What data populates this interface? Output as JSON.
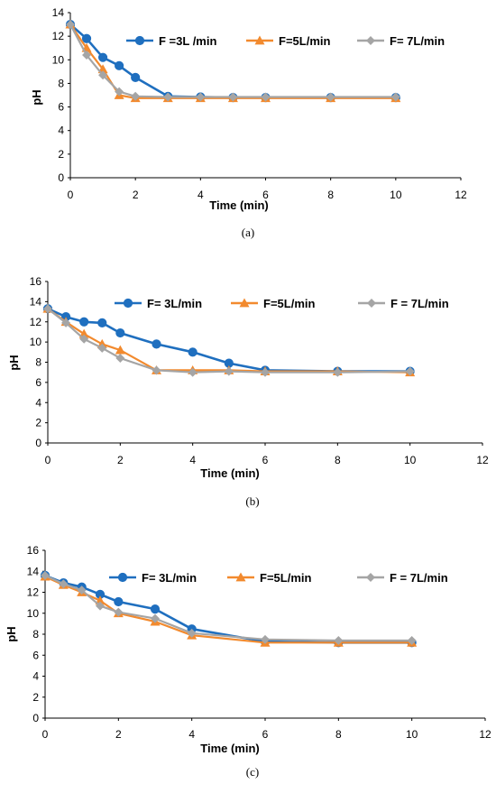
{
  "colors": {
    "s1": "#1f6fbf",
    "s2": "#f28a2e",
    "s3": "#a5a5a5",
    "axis": "#000000"
  },
  "chart_data": [
    {
      "type": "line",
      "caption": "(a)",
      "xlabel": "Time (min)",
      "ylabel": "pH",
      "xlim": [
        0,
        12
      ],
      "ylim": [
        0,
        14
      ],
      "xticks": [
        0,
        2,
        4,
        6,
        8,
        10,
        12
      ],
      "yticks": [
        0,
        2,
        4,
        6,
        8,
        10,
        12,
        14
      ],
      "legend_position": "top-right",
      "series": [
        {
          "name": "F =3L /min",
          "marker": "circle",
          "x": [
            0,
            0.5,
            1,
            1.5,
            2,
            3,
            4,
            5,
            6,
            8,
            10
          ],
          "y": [
            13.0,
            11.8,
            10.2,
            9.5,
            8.5,
            6.9,
            6.85,
            6.8,
            6.8,
            6.8,
            6.8
          ]
        },
        {
          "name": "F=5L/min",
          "marker": "triangle",
          "x": [
            0,
            0.5,
            1,
            1.5,
            2,
            3,
            4,
            5,
            6,
            8,
            10
          ],
          "y": [
            13.0,
            11.0,
            9.2,
            7.0,
            6.75,
            6.75,
            6.75,
            6.75,
            6.75,
            6.75,
            6.75
          ]
        },
        {
          "name": "F= 7L/min",
          "marker": "diamond",
          "x": [
            0,
            0.5,
            1,
            1.5,
            2,
            3,
            4,
            5,
            6,
            8,
            10
          ],
          "y": [
            13.0,
            10.4,
            8.7,
            7.3,
            6.9,
            6.85,
            6.85,
            6.85,
            6.85,
            6.85,
            6.85
          ]
        }
      ]
    },
    {
      "type": "line",
      "caption": "(b)",
      "xlabel": "Time (min)",
      "ylabel": "pH",
      "xlim": [
        0,
        12
      ],
      "ylim": [
        0,
        16
      ],
      "xticks": [
        0,
        2,
        4,
        6,
        8,
        10,
        12
      ],
      "yticks": [
        0,
        2,
        4,
        6,
        8,
        10,
        12,
        14,
        16
      ],
      "legend_position": "top",
      "series": [
        {
          "name": "F= 3L/min",
          "marker": "circle",
          "x": [
            0,
            0.5,
            1,
            1.5,
            2,
            3,
            4,
            5,
            6,
            8,
            10
          ],
          "y": [
            13.3,
            12.5,
            12.0,
            11.9,
            10.9,
            9.8,
            9.0,
            7.9,
            7.2,
            7.1,
            7.1
          ]
        },
        {
          "name": "F=5L/min",
          "marker": "triangle",
          "x": [
            0,
            0.5,
            1,
            1.5,
            2,
            3,
            4,
            5,
            6,
            8,
            10
          ],
          "y": [
            13.3,
            12.0,
            10.8,
            9.8,
            9.2,
            7.2,
            7.2,
            7.2,
            7.1,
            7.1,
            7.0
          ]
        },
        {
          "name": "F = 7L/min",
          "marker": "diamond",
          "x": [
            0,
            0.5,
            1,
            1.5,
            2,
            3,
            4,
            5,
            6,
            8,
            10
          ],
          "y": [
            13.3,
            11.9,
            10.3,
            9.4,
            8.4,
            7.2,
            7.0,
            7.1,
            7.0,
            7.0,
            7.1
          ]
        }
      ]
    },
    {
      "type": "line",
      "caption": "(c)",
      "xlabel": "Time (min)",
      "ylabel": "pH",
      "xlim": [
        0,
        12
      ],
      "ylim": [
        0,
        16
      ],
      "xticks": [
        0,
        2,
        4,
        6,
        8,
        10,
        12
      ],
      "yticks": [
        0,
        2,
        4,
        6,
        8,
        10,
        12,
        14,
        16
      ],
      "legend_position": "top",
      "series": [
        {
          "name": "F= 3L/min",
          "marker": "circle",
          "x": [
            0,
            0.5,
            1,
            1.5,
            2,
            3,
            4,
            6,
            8,
            10
          ],
          "y": [
            13.6,
            12.9,
            12.5,
            11.8,
            11.1,
            10.4,
            8.5,
            7.3,
            7.2,
            7.2
          ]
        },
        {
          "name": "F=5L/min",
          "marker": "triangle",
          "x": [
            0,
            0.5,
            1,
            1.5,
            2,
            3,
            4,
            6,
            8,
            10
          ],
          "y": [
            13.5,
            12.7,
            12.0,
            11.2,
            10.0,
            9.2,
            7.9,
            7.2,
            7.2,
            7.2
          ]
        },
        {
          "name": "F = 7L/min",
          "marker": "diamond",
          "x": [
            0,
            0.5,
            1,
            1.5,
            2,
            3,
            4,
            6,
            8,
            10
          ],
          "y": [
            13.6,
            12.8,
            12.2,
            10.7,
            10.1,
            9.5,
            8.1,
            7.5,
            7.4,
            7.4
          ]
        }
      ]
    }
  ]
}
